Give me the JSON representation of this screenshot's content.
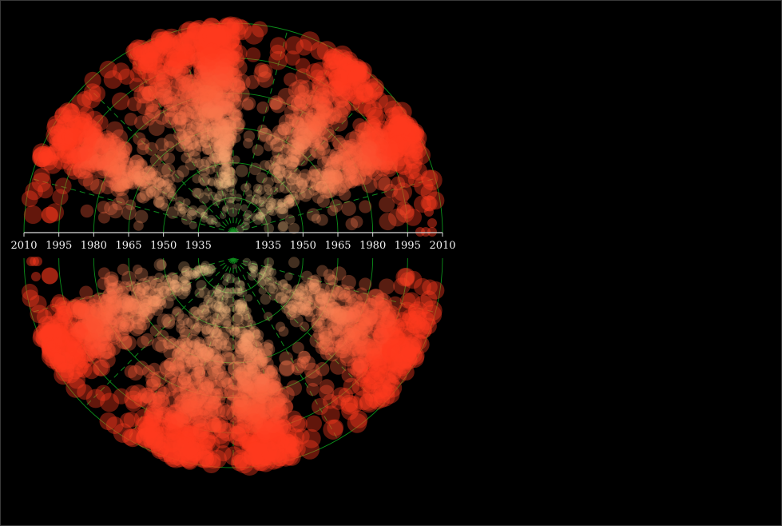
{
  "chart_data": {
    "type": "scatter",
    "layout": "radial half-discs mirrored across a central time axis",
    "axis_ticks_left": [
      "2010",
      "1995",
      "1980",
      "1965",
      "1950",
      "1935"
    ],
    "axis_ticks_right": [
      "1935",
      "1950",
      "1965",
      "1980",
      "1995",
      "2010"
    ],
    "axis_range": [
      1920,
      2010
    ],
    "grid": true,
    "colors": {
      "background": "#000000",
      "grid": "#0c8f1a",
      "axis": "#dcdcdc",
      "early_point": "#f1e2a0",
      "late_point": "#ff3a1e"
    }
  }
}
